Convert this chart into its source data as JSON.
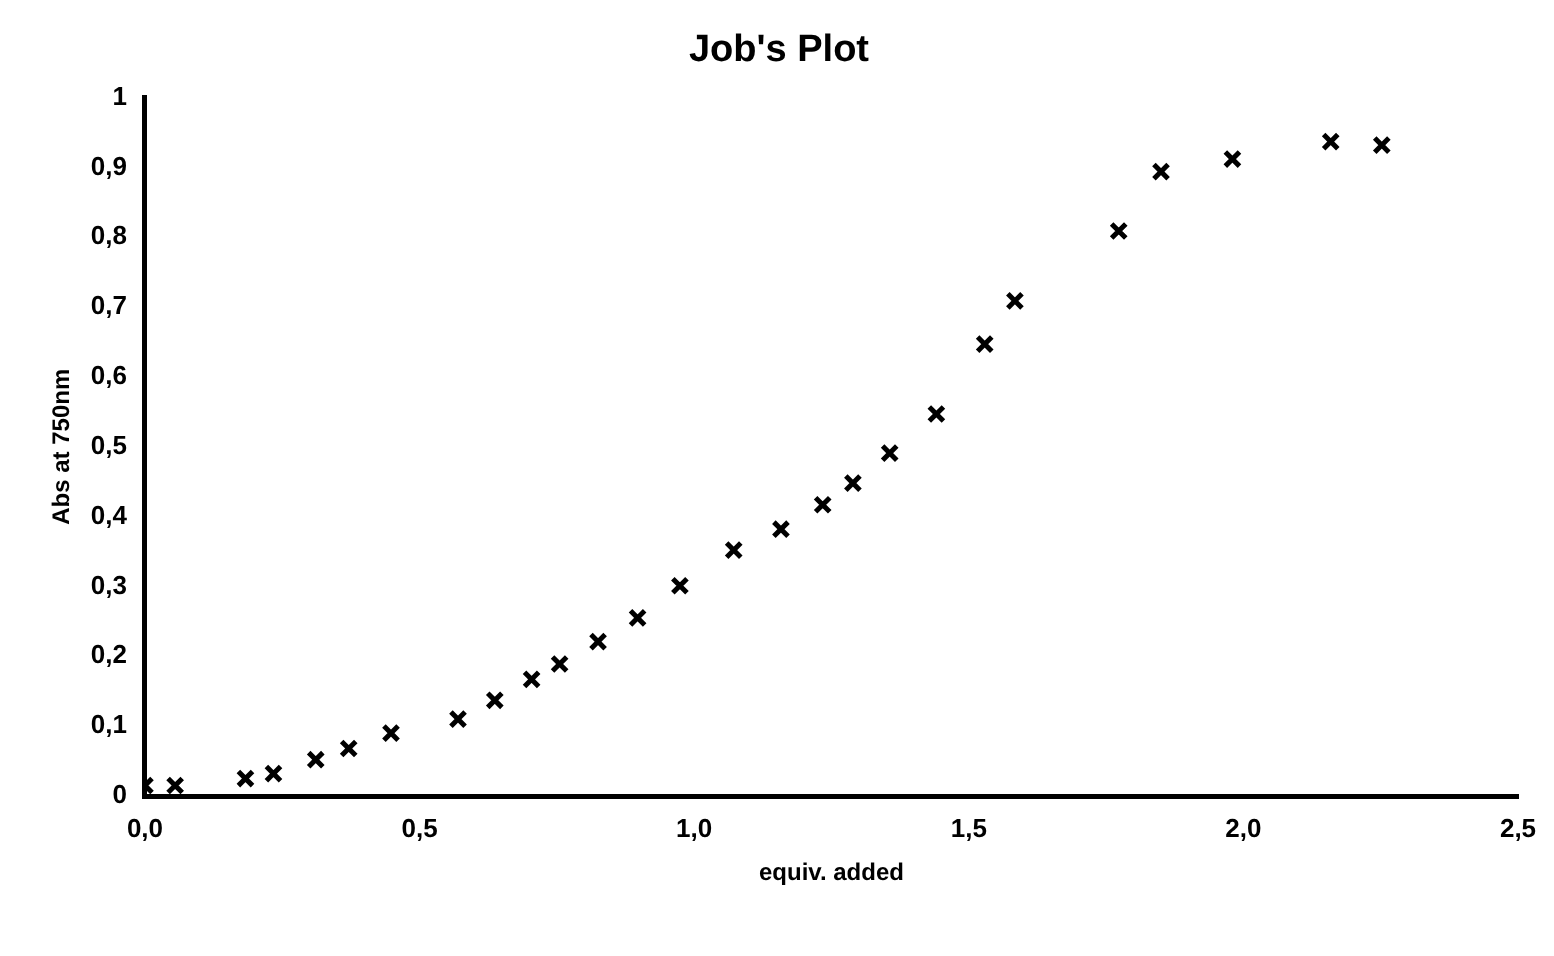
{
  "chart_data": {
    "type": "scatter",
    "title": "Job's Plot",
    "xlabel": "equiv. added",
    "ylabel": "Abs at 750nm",
    "x": [
      0,
      0.055,
      0.183,
      0.234,
      0.311,
      0.371,
      0.448,
      0.57,
      0.637,
      0.704,
      0.755,
      0.825,
      0.897,
      0.974,
      1.072,
      1.158,
      1.234,
      1.289,
      1.356,
      1.441,
      1.529,
      1.584,
      1.773,
      1.85,
      1.98,
      2.159,
      2.252
    ],
    "series": [
      {
        "color": "#000000",
        "values": [
          0.015,
          0.015,
          0.025,
          0.032,
          0.052,
          0.068,
          0.09,
          0.11,
          0.137,
          0.167,
          0.189,
          0.221,
          0.255,
          0.301,
          0.352,
          0.382,
          0.417,
          0.448,
          0.491,
          0.547,
          0.647,
          0.709,
          0.809,
          0.894,
          0.912,
          0.937,
          0.932
        ]
      }
    ],
    "xlim": [
      0,
      2.5
    ],
    "xticks": [
      {
        "value": 0,
        "label": "0,0"
      },
      {
        "value": 0.5,
        "label": "0,5"
      },
      {
        "value": 1,
        "label": "1,0"
      },
      {
        "value": 1.5,
        "label": "1,5"
      },
      {
        "value": 2,
        "label": "2,0"
      },
      {
        "value": 2.5,
        "label": "2,5"
      }
    ],
    "ylim": [
      0,
      1
    ],
    "yticks": [
      0,
      {
        "value": 0.1,
        "label": "0,1"
      },
      {
        "value": 0.2,
        "label": "0,2"
      },
      {
        "value": 0.3,
        "label": "0,3"
      },
      {
        "value": 0.4,
        "label": "0,4"
      },
      {
        "value": 0.5,
        "label": "0,5"
      },
      {
        "value": 0.6,
        "label": "0,6"
      },
      {
        "value": 0.7,
        "label": "0,7"
      },
      {
        "value": 0.8,
        "label": "0,8"
      },
      {
        "value": 0.9,
        "label": "0,9"
      },
      1
    ],
    "grid": false,
    "legend": false,
    "marker": "cross"
  }
}
